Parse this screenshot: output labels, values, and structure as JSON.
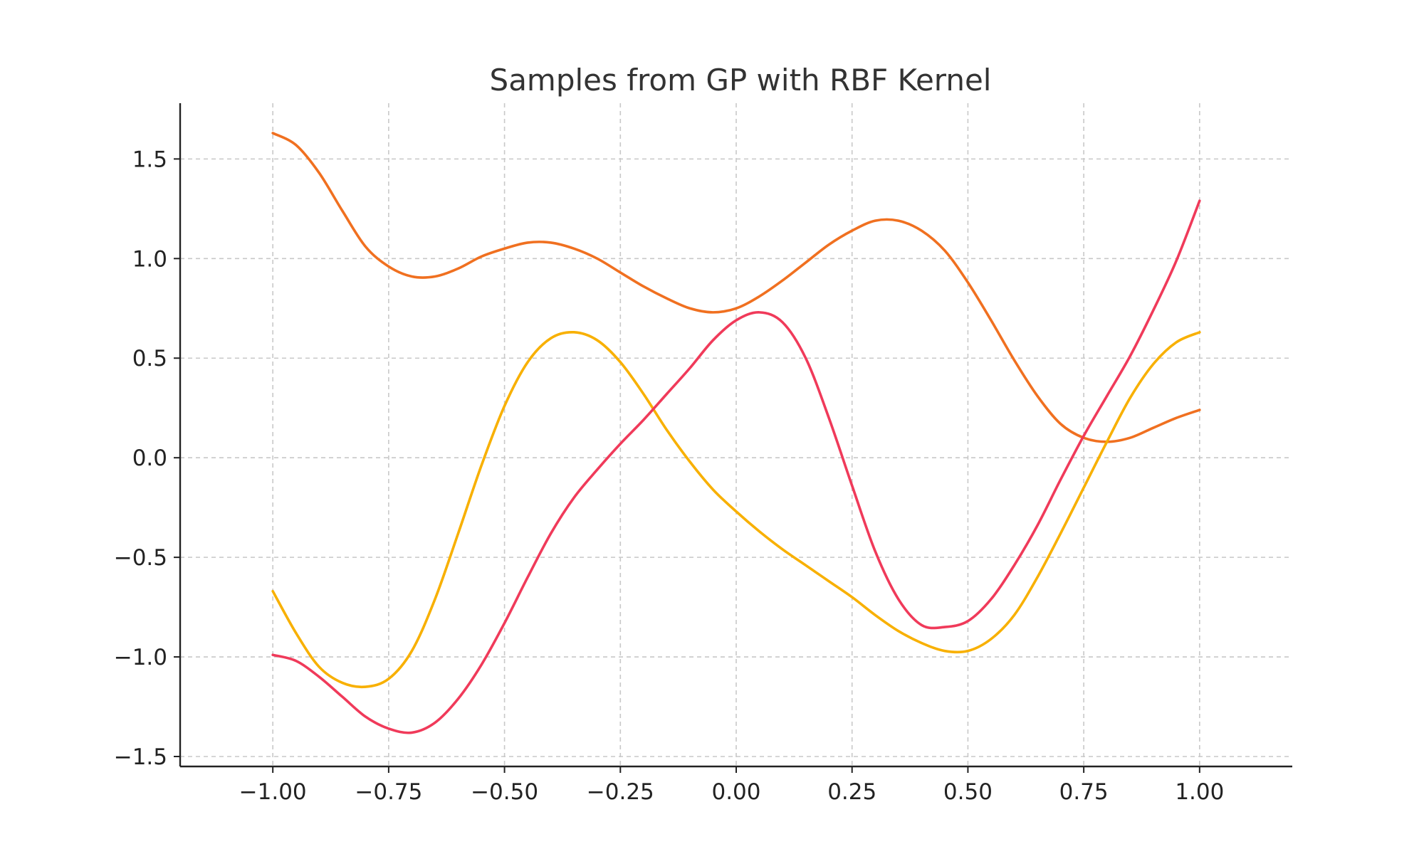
{
  "chart_data": {
    "type": "line",
    "title": "Samples from GP with RBF Kernel",
    "xlabel": "",
    "ylabel": "",
    "xlim": [
      -1.2,
      1.2
    ],
    "ylim": [
      -1.55,
      1.78
    ],
    "x_ticks": [
      -1.0,
      -0.75,
      -0.5,
      -0.25,
      0.0,
      0.25,
      0.5,
      0.75,
      1.0
    ],
    "x_tick_labels": [
      "−1.00",
      "−0.75",
      "−0.50",
      "−0.25",
      "0.00",
      "0.25",
      "0.50",
      "0.75",
      "1.00"
    ],
    "y_ticks": [
      -1.5,
      -1.0,
      -0.5,
      0.0,
      0.5,
      1.0,
      1.5
    ],
    "y_tick_labels": [
      "−1.5",
      "−1.0",
      "−0.5",
      "0.0",
      "0.5",
      "1.0",
      "1.5"
    ],
    "grid": true,
    "series": [
      {
        "color": "#f07020",
        "x": [
          -1.0,
          -0.95,
          -0.9,
          -0.85,
          -0.8,
          -0.75,
          -0.7,
          -0.65,
          -0.6,
          -0.55,
          -0.5,
          -0.45,
          -0.4,
          -0.35,
          -0.3,
          -0.25,
          -0.2,
          -0.15,
          -0.1,
          -0.05,
          0.0,
          0.05,
          0.1,
          0.15,
          0.2,
          0.25,
          0.3,
          0.35,
          0.4,
          0.45,
          0.5,
          0.55,
          0.6,
          0.65,
          0.7,
          0.75,
          0.8,
          0.85,
          0.9,
          0.95,
          1.0
        ],
        "y": [
          1.63,
          1.57,
          1.43,
          1.24,
          1.06,
          0.96,
          0.91,
          0.91,
          0.95,
          1.01,
          1.05,
          1.08,
          1.08,
          1.05,
          1.0,
          0.93,
          0.86,
          0.8,
          0.75,
          0.73,
          0.75,
          0.81,
          0.89,
          0.98,
          1.07,
          1.14,
          1.19,
          1.19,
          1.14,
          1.04,
          0.88,
          0.69,
          0.49,
          0.31,
          0.17,
          0.1,
          0.08,
          0.1,
          0.15,
          0.2,
          0.24
        ]
      },
      {
        "color": "#f8b000",
        "x": [
          -1.0,
          -0.95,
          -0.9,
          -0.85,
          -0.8,
          -0.75,
          -0.7,
          -0.65,
          -0.6,
          -0.55,
          -0.5,
          -0.45,
          -0.4,
          -0.35,
          -0.3,
          -0.25,
          -0.2,
          -0.15,
          -0.1,
          -0.05,
          0.0,
          0.05,
          0.1,
          0.15,
          0.2,
          0.25,
          0.3,
          0.35,
          0.4,
          0.45,
          0.5,
          0.55,
          0.6,
          0.65,
          0.7,
          0.75,
          0.8,
          0.85,
          0.9,
          0.95,
          1.0
        ],
        "y": [
          -0.67,
          -0.88,
          -1.05,
          -1.13,
          -1.15,
          -1.11,
          -0.97,
          -0.71,
          -0.38,
          -0.04,
          0.26,
          0.48,
          0.6,
          0.63,
          0.59,
          0.48,
          0.32,
          0.14,
          -0.02,
          -0.16,
          -0.27,
          -0.37,
          -0.46,
          -0.54,
          -0.62,
          -0.7,
          -0.79,
          -0.87,
          -0.93,
          -0.97,
          -0.97,
          -0.91,
          -0.79,
          -0.6,
          -0.38,
          -0.15,
          0.08,
          0.3,
          0.47,
          0.58,
          0.63
        ]
      },
      {
        "color": "#f03a5a",
        "x": [
          -1.0,
          -0.95,
          -0.9,
          -0.85,
          -0.8,
          -0.75,
          -0.7,
          -0.65,
          -0.6,
          -0.55,
          -0.5,
          -0.45,
          -0.4,
          -0.35,
          -0.3,
          -0.25,
          -0.2,
          -0.15,
          -0.1,
          -0.05,
          0.0,
          0.05,
          0.1,
          0.15,
          0.2,
          0.25,
          0.3,
          0.35,
          0.4,
          0.45,
          0.5,
          0.55,
          0.6,
          0.65,
          0.7,
          0.75,
          0.8,
          0.85,
          0.9,
          0.95,
          1.0
        ],
        "y": [
          -0.99,
          -1.02,
          -1.1,
          -1.2,
          -1.3,
          -1.36,
          -1.38,
          -1.33,
          -1.21,
          -1.04,
          -0.83,
          -0.6,
          -0.38,
          -0.2,
          -0.06,
          0.07,
          0.19,
          0.32,
          0.45,
          0.59,
          0.69,
          0.73,
          0.68,
          0.5,
          0.2,
          -0.14,
          -0.47,
          -0.71,
          -0.84,
          -0.85,
          -0.82,
          -0.71,
          -0.54,
          -0.34,
          -0.11,
          0.11,
          0.31,
          0.51,
          0.74,
          0.99,
          1.29
        ]
      }
    ]
  }
}
